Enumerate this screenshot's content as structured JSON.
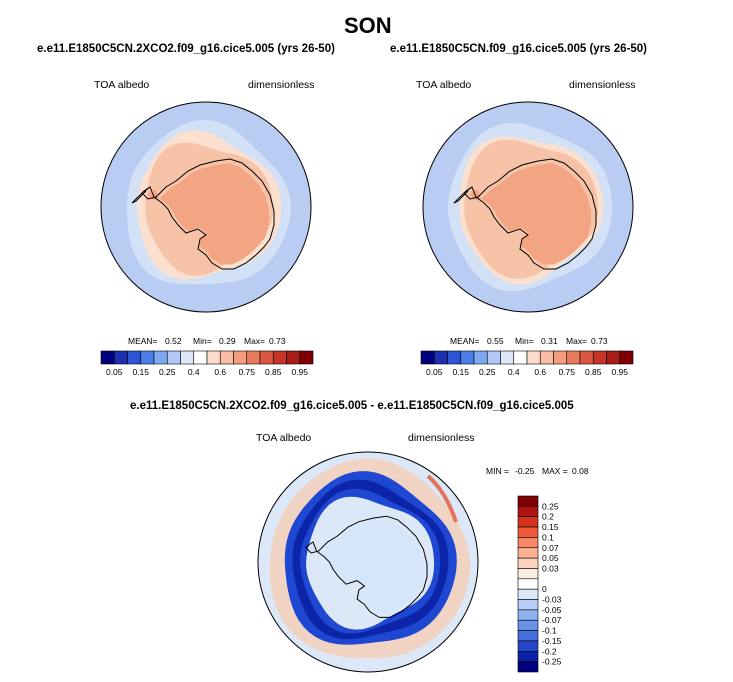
{
  "title": "SON",
  "colors": {
    "ocean_low": "#b9ccf2",
    "ocean_mid": "#d3e1f7",
    "ice_edge": "#fbe0d0",
    "pack": "#f7c3a8",
    "continent": "#f3a483",
    "coast_line": "#000000",
    "diff_bg": "#dce8f8",
    "diff_band": "#1e48d2",
    "diff_band_dark": "#0c25a8",
    "diff_pos": "#f6cdb6",
    "diff_red": "#e3745c"
  },
  "chart_data": [
    {
      "type": "heatmap",
      "projection": "south-polar-stereographic",
      "title": "e.e11.E1850C5CN.2XCO2.f09_g16.cice5.005 (yrs 26-50)",
      "left_label": "TOA albedo",
      "right_label": "dimensionless",
      "stats": {
        "mean_label": "MEAN=",
        "mean": "0.52",
        "min_label": "Min=",
        "min": "0.29",
        "max_label": "Max=",
        "max": "0.73"
      },
      "colorbar": {
        "orientation": "horizontal",
        "colors": [
          "#00007f",
          "#1c2fb0",
          "#2c55d6",
          "#4a7fe8",
          "#7ea9f0",
          "#b0c9f5",
          "#dce7f9",
          "#ffffff",
          "#fbdccb",
          "#f8bda3",
          "#f39d7d",
          "#e97a5c",
          "#dd5640",
          "#c83528",
          "#a81c14",
          "#7f0000"
        ],
        "tick_labels": [
          "0.05",
          "0.15",
          "0.25",
          "0.4",
          "0.6",
          "0.75",
          "0.85",
          "0.95"
        ]
      }
    },
    {
      "type": "heatmap",
      "projection": "south-polar-stereographic",
      "title": "e.e11.E1850C5CN.f09_g16.cice5.005 (yrs 26-50)",
      "left_label": "TOA albedo",
      "right_label": "dimensionless",
      "stats": {
        "mean_label": "MEAN=",
        "mean": "0.55",
        "min_label": "Min=",
        "min": "0.31",
        "max_label": "Max=",
        "max": "0.73"
      },
      "colorbar": {
        "orientation": "horizontal",
        "colors": [
          "#00007f",
          "#1c2fb0",
          "#2c55d6",
          "#4a7fe8",
          "#7ea9f0",
          "#b0c9f5",
          "#dce7f9",
          "#ffffff",
          "#fbdccb",
          "#f8bda3",
          "#f39d7d",
          "#e97a5c",
          "#dd5640",
          "#c83528",
          "#a81c14",
          "#7f0000"
        ],
        "tick_labels": [
          "0.05",
          "0.15",
          "0.25",
          "0.4",
          "0.6",
          "0.75",
          "0.85",
          "0.95"
        ]
      }
    },
    {
      "type": "heatmap",
      "projection": "south-polar-stereographic",
      "title": "e.e11.E1850C5CN.2XCO2.f09_g16.cice5.005 - e.e11.E1850C5CN.f09_g16.cice5.005",
      "left_label": "TOA albedo",
      "right_label": "dimensionless",
      "stats": {
        "min_label": "MIN =",
        "min": "-0.25",
        "max_label": "MAX =",
        "max": "0.08"
      },
      "colorbar": {
        "orientation": "vertical",
        "colors": [
          "#7f0000",
          "#b0140e",
          "#d63220",
          "#f05a3c",
          "#f78863",
          "#fab28f",
          "#fcd3bd",
          "#fdebdf",
          "#ffffff",
          "#dbe7fa",
          "#b6cdf5",
          "#8fb1ef",
          "#6b92e8",
          "#4470de",
          "#2448c8",
          "#0a22a8",
          "#00007f"
        ],
        "tick_labels": [
          "0.25",
          "0.2",
          "0.15",
          "0.1",
          "0.07",
          "0.05",
          "0.03",
          "0",
          "-0.03",
          "-0.05",
          "-0.07",
          "-0.1",
          "-0.15",
          "-0.2",
          "-0.25"
        ]
      }
    }
  ]
}
